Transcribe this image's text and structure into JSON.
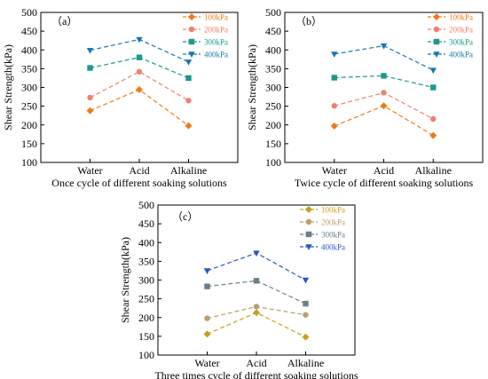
{
  "figure": {
    "colors": {
      "a_100kPa": "#f07a1a",
      "a_200kPa": "#f08070",
      "a_300kPa": "#1a9a8a",
      "a_400kPa": "#1a78b0",
      "b_100kPa": "#f07a1a",
      "b_200kPa": "#f08070",
      "b_300kPa": "#1a9a8a",
      "b_400kPa": "#1a78b0",
      "c_100kPa": "#c8a020",
      "c_200kPa": "#b8a070",
      "c_300kPa": "#6a7f8a",
      "c_400kPa": "#2a58c8"
    }
  },
  "chart_data": [
    {
      "type": "line",
      "panel_label": "（a）",
      "xlabel": "Once cycle of different soaking solutions",
      "ylabel": "Shear Strength(kPa)",
      "categories": [
        "Water",
        "Acid",
        "Alkaline"
      ],
      "ylim": [
        100,
        500
      ],
      "yticks": [
        "100",
        "150",
        "200",
        "250",
        "300",
        "350",
        "400",
        "450",
        "500"
      ],
      "legend_position": "top-right",
      "grid": false,
      "series": [
        {
          "name": "100kPa",
          "marker": "diamond",
          "values": [
            238,
            294,
            198
          ]
        },
        {
          "name": "200kPa",
          "marker": "circle",
          "values": [
            273,
            342,
            265
          ]
        },
        {
          "name": "300kPa",
          "marker": "square",
          "values": [
            352,
            380,
            325
          ]
        },
        {
          "name": "400kPa",
          "marker": "triangle-down",
          "values": [
            399,
            428,
            368
          ]
        }
      ]
    },
    {
      "type": "line",
      "panel_label": "（b）",
      "xlabel": "Twice cycle of different soaking solutions",
      "ylabel": "Shear Strength(kPa)",
      "categories": [
        "Water",
        "Acid",
        "Alkaline"
      ],
      "ylim": [
        100,
        500
      ],
      "yticks": [
        "100",
        "150",
        "200",
        "250",
        "300",
        "350",
        "400",
        "450",
        "500"
      ],
      "legend_position": "top-right",
      "grid": false,
      "series": [
        {
          "name": "100kPa",
          "marker": "diamond",
          "values": [
            197,
            251,
            172
          ]
        },
        {
          "name": "200kPa",
          "marker": "circle",
          "values": [
            251,
            286,
            216
          ]
        },
        {
          "name": "300kPa",
          "marker": "square",
          "values": [
            326,
            331,
            300
          ]
        },
        {
          "name": "400kPa",
          "marker": "triangle-down",
          "values": [
            389,
            411,
            346
          ]
        }
      ]
    },
    {
      "type": "line",
      "panel_label": "（c）",
      "xlabel": "Three times cycle of different soaking solutions",
      "ylabel": "Shear Strength(kPa)",
      "categories": [
        "Water",
        "Acid",
        "Alkaline"
      ],
      "ylim": [
        100,
        500
      ],
      "yticks": [
        "100",
        "150",
        "200",
        "250",
        "300",
        "350",
        "400",
        "450",
        "500"
      ],
      "legend_position": "top-right",
      "grid": false,
      "series": [
        {
          "name": "100kPa",
          "marker": "diamond",
          "values": [
            156,
            213,
            148
          ]
        },
        {
          "name": "200kPa",
          "marker": "circle",
          "values": [
            198,
            229,
            207
          ]
        },
        {
          "name": "300kPa",
          "marker": "square",
          "values": [
            283,
            298,
            237
          ]
        },
        {
          "name": "400kPa",
          "marker": "triangle-down",
          "values": [
            325,
            372,
            300
          ]
        }
      ]
    }
  ]
}
